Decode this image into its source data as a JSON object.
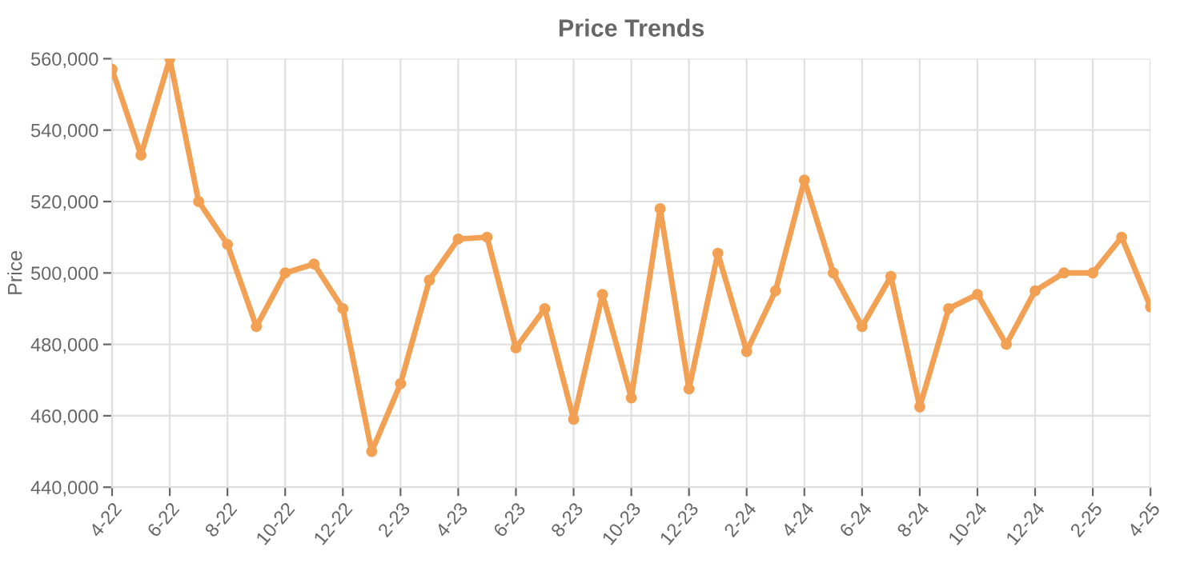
{
  "chart_data": {
    "type": "line",
    "title": "Price Trends",
    "ylabel": "Price",
    "categories": [
      "4-22",
      null,
      "6-22",
      null,
      "8-22",
      null,
      "10-22",
      null,
      "12-22",
      null,
      "2-23",
      null,
      "4-23",
      null,
      "6-23",
      null,
      "8-23",
      null,
      "10-23",
      null,
      "12-23",
      null,
      "2-24",
      null,
      "4-24",
      null,
      "6-24",
      null,
      "8-24",
      null,
      "10-24",
      null,
      "12-24",
      null,
      "2-25",
      null,
      "4-25"
    ],
    "series": [
      {
        "color": "#f2a154",
        "values": [
          557000,
          533000,
          560000,
          520000,
          508000,
          485000,
          500000,
          502500,
          490000,
          450000,
          469000,
          498000,
          509500,
          510000,
          479000,
          490000,
          459000,
          494000,
          465000,
          518000,
          467500,
          505500,
          478000,
          495000,
          526000,
          500000,
          485000,
          499000,
          462500,
          490000,
          494000,
          480000,
          495000,
          500000,
          500000,
          510000,
          490500
        ]
      }
    ],
    "ylim": [
      440000,
      560000
    ],
    "yticks": [
      {
        "value": 440000,
        "label": "440,000"
      },
      {
        "value": 460000,
        "label": "460,000"
      },
      {
        "value": 480000,
        "label": "480,000"
      },
      {
        "value": 500000,
        "label": "500,000"
      },
      {
        "value": 520000,
        "label": "520,000"
      },
      {
        "value": 540000,
        "label": "540,000"
      },
      {
        "value": 560000,
        "label": "560,000"
      }
    ],
    "grid": true,
    "marker": "circle",
    "line_style": "solid"
  }
}
